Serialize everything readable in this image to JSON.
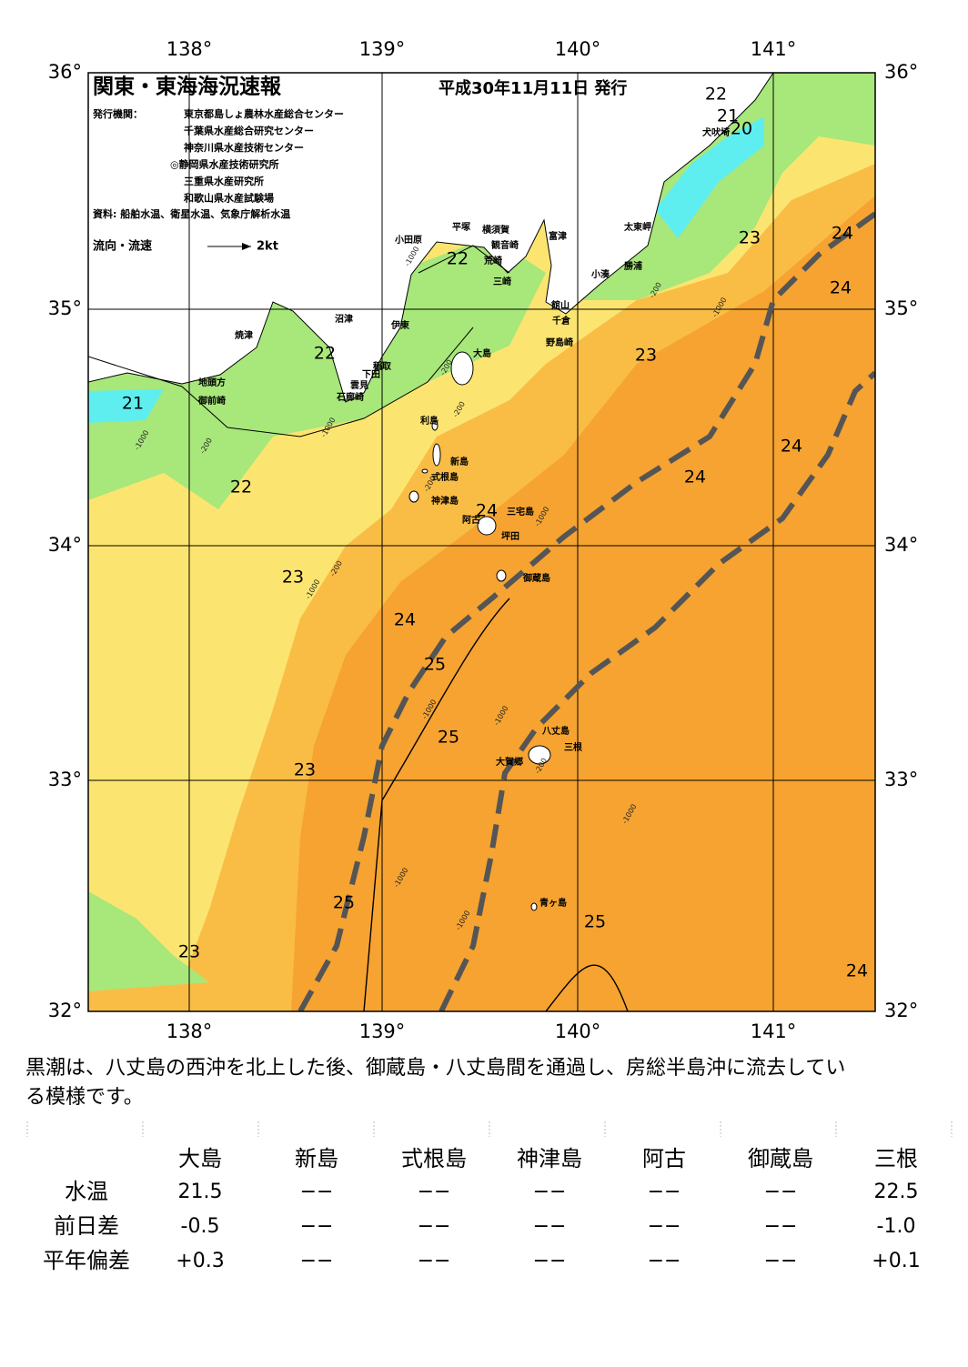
{
  "header": {
    "title": "関東・東海海況速報",
    "date": "平成30年11月11日 発行"
  },
  "agency": {
    "label": "発行機関：",
    "names": [
      "東京都島しょ農林水産総合センター",
      "千葉県水産総合研究センター",
      "神奈川県水産技術センター",
      "◎静岡県水産技術研究所",
      "三重県水産研究所",
      "和歌山県水産試験場"
    ]
  },
  "source": "資料: 船舶水温、衛星水温、気象庁解析水温",
  "current_legend": {
    "label": "流向・流速",
    "speed": "2kt"
  },
  "axes": {
    "longitude": [
      "138°",
      "139°",
      "140°",
      "141°"
    ],
    "latitude": [
      "36°",
      "35°",
      "34°",
      "33°",
      "32°"
    ]
  },
  "places": [
    "犬吠埼",
    "太東岬",
    "勝浦",
    "小湊",
    "富津",
    "横須賀",
    "平塚",
    "小田原",
    "観音崎",
    "荒崎",
    "三崎",
    "館山",
    "千倉",
    "野島崎",
    "沼津",
    "伊東",
    "焼津",
    "稲取",
    "下田",
    "雲見",
    "石廊崎",
    "地頭方",
    "御前崎",
    "大島",
    "利島",
    "新島",
    "式根島",
    "神津島",
    "三宅島",
    "阿古",
    "坪田",
    "御蔵島",
    "八丈島",
    "三根",
    "大賀郷",
    "青ヶ島"
  ],
  "isotherms": [
    "22",
    "21",
    "20",
    "23",
    "24",
    "24",
    "22",
    "23",
    "22",
    "21",
    "24",
    "24",
    "22",
    "24",
    "23",
    "24",
    "25",
    "25",
    "23",
    "25",
    "25",
    "23",
    "24"
  ],
  "depths": [
    "-1000",
    "-200",
    "-200",
    "-1000",
    "-200",
    "-1000",
    "-1000",
    "-200",
    "-1000",
    "-200",
    "-1000",
    "-1000",
    "-200",
    "-1000",
    "-1000",
    "-1000",
    "-200",
    "-1000"
  ],
  "summary": "黒潮は、八丈島の西沖を北上した後、御蔵島・八丈島間を通過し、房総半島沖に流去している模様です。",
  "table": {
    "columns": [
      "大島",
      "新島",
      "式根島",
      "神津島",
      "阿古",
      "御蔵島",
      "三根"
    ],
    "rows": [
      {
        "label": "水温",
        "cells": [
          "21.5",
          "−−",
          "−−",
          "−−",
          "−−",
          "−−",
          "22.5"
        ]
      },
      {
        "label": "前日差",
        "cells": [
          "-0.5",
          "−−",
          "−−",
          "−−",
          "−−",
          "−−",
          "-1.0"
        ]
      },
      {
        "label": "平年偏差",
        "cells": [
          "+0.3",
          "−−",
          "−−",
          "−−",
          "−−",
          "−−",
          "+0.1"
        ]
      }
    ]
  }
}
